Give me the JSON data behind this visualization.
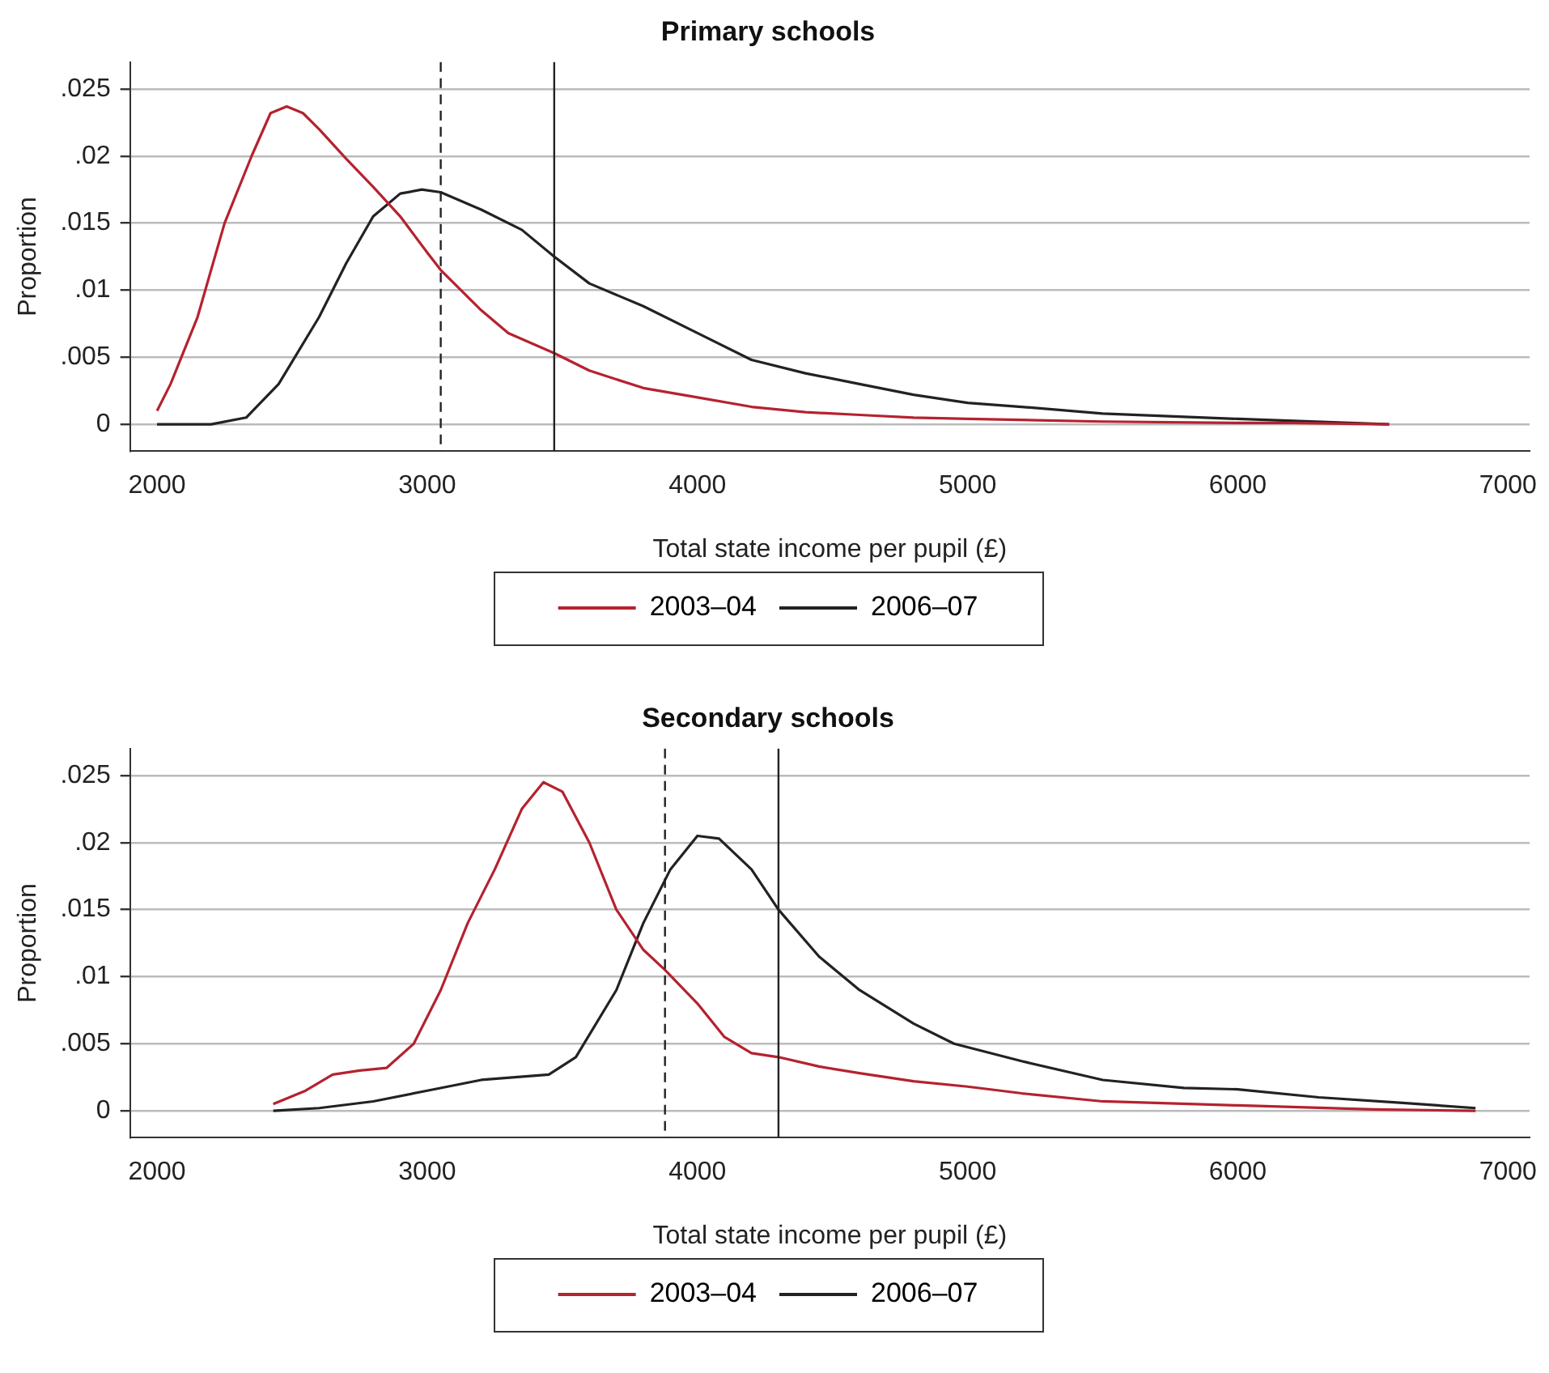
{
  "chart_data": [
    {
      "type": "line",
      "title": "Primary schools",
      "xlabel": "Total state income per pupil (£)",
      "ylabel": "Proportion",
      "xlim": [
        1900,
        7080
      ],
      "xticks": [
        2000,
        3000,
        4000,
        5000,
        6000,
        7000
      ],
      "ylim": [
        -0.002,
        0.027
      ],
      "yticks": [
        {
          "value": 0,
          "label": "0"
        },
        {
          "value": 0.005,
          "label": ".005"
        },
        {
          "value": 0.01,
          "label": ".01"
        },
        {
          "value": 0.015,
          "label": ".015"
        },
        {
          "value": 0.02,
          "label": ".02"
        },
        {
          "value": 0.025,
          "label": ".025"
        }
      ],
      "grid": "y",
      "legend": "bottom",
      "marker": "none",
      "line_style": "solid",
      "ref_lines": [
        {
          "axis": "x",
          "value": 3050,
          "line_style": "dashed",
          "color": "#222222"
        },
        {
          "axis": "x",
          "value": 3470,
          "line_style": "solid",
          "color": "#222222"
        }
      ],
      "series": [
        {
          "name": "2003–04",
          "color": "#b5222f",
          "x": [
            2000,
            2050,
            2150,
            2250,
            2350,
            2420,
            2480,
            2540,
            2600,
            2700,
            2800,
            2900,
            3000,
            3050,
            3200,
            3300,
            3470,
            3600,
            3800,
            4000,
            4200,
            4400,
            4600,
            4800,
            5000,
            5500,
            6000,
            6200,
            6560
          ],
          "values": [
            0.001,
            0.003,
            0.008,
            0.015,
            0.02,
            0.0232,
            0.0237,
            0.0232,
            0.022,
            0.0198,
            0.0177,
            0.0155,
            0.0128,
            0.0115,
            0.0085,
            0.0068,
            0.0053,
            0.004,
            0.0027,
            0.002,
            0.0013,
            0.0009,
            0.0007,
            0.0005,
            0.0004,
            0.0002,
            0.0001,
            0.0001,
            0
          ]
        },
        {
          "name": "2006–07",
          "color": "#222222",
          "x": [
            2000,
            2200,
            2330,
            2450,
            2600,
            2700,
            2800,
            2900,
            2980,
            3050,
            3200,
            3350,
            3470,
            3600,
            3800,
            4000,
            4200,
            4400,
            4600,
            4800,
            5000,
            5200,
            5500,
            6000,
            6560
          ],
          "values": [
            0,
            0,
            0.0005,
            0.003,
            0.008,
            0.012,
            0.0155,
            0.0172,
            0.0175,
            0.0173,
            0.016,
            0.0145,
            0.0125,
            0.0105,
            0.0088,
            0.0068,
            0.0048,
            0.0038,
            0.003,
            0.0022,
            0.0016,
            0.0013,
            0.0008,
            0.0004,
            0
          ]
        }
      ]
    },
    {
      "type": "line",
      "title": "Secondary schools",
      "xlabel": "Total state income per pupil (£)",
      "ylabel": "Proportion",
      "xlim": [
        1900,
        7080
      ],
      "xticks": [
        2000,
        3000,
        4000,
        5000,
        6000,
        7000
      ],
      "ylim": [
        -0.002,
        0.027
      ],
      "yticks": [
        {
          "value": 0,
          "label": "0"
        },
        {
          "value": 0.005,
          "label": ".005"
        },
        {
          "value": 0.01,
          "label": ".01"
        },
        {
          "value": 0.015,
          "label": ".015"
        },
        {
          "value": 0.02,
          "label": ".02"
        },
        {
          "value": 0.025,
          "label": ".025"
        }
      ],
      "grid": "y",
      "legend": "bottom",
      "marker": "none",
      "line_style": "solid",
      "ref_lines": [
        {
          "axis": "x",
          "value": 3880,
          "line_style": "dashed",
          "color": "#222222"
        },
        {
          "axis": "x",
          "value": 4300,
          "line_style": "solid",
          "color": "#222222"
        }
      ],
      "series": [
        {
          "name": "2003–04",
          "color": "#b5222f",
          "x": [
            2430,
            2550,
            2650,
            2750,
            2850,
            2950,
            3050,
            3150,
            3250,
            3350,
            3430,
            3500,
            3600,
            3700,
            3800,
            3880,
            4000,
            4100,
            4200,
            4300,
            4450,
            4600,
            4800,
            5000,
            5200,
            5500,
            6000,
            6500,
            6880
          ],
          "values": [
            0.0005,
            0.0015,
            0.0027,
            0.003,
            0.0032,
            0.005,
            0.009,
            0.014,
            0.018,
            0.0225,
            0.0245,
            0.0238,
            0.02,
            0.015,
            0.012,
            0.0105,
            0.008,
            0.0055,
            0.0043,
            0.004,
            0.0033,
            0.0028,
            0.0022,
            0.0018,
            0.0013,
            0.0007,
            0.0004,
            0.0001,
            0
          ]
        },
        {
          "name": "2006–07",
          "color": "#222222",
          "x": [
            2430,
            2600,
            2800,
            3000,
            3200,
            3450,
            3550,
            3700,
            3800,
            3900,
            4000,
            4080,
            4200,
            4300,
            4450,
            4600,
            4800,
            4950,
            5200,
            5500,
            5800,
            6000,
            6300,
            6600,
            6880
          ],
          "values": [
            0,
            0.0002,
            0.0007,
            0.0015,
            0.0023,
            0.0027,
            0.004,
            0.009,
            0.014,
            0.018,
            0.0205,
            0.0203,
            0.018,
            0.015,
            0.0115,
            0.009,
            0.0065,
            0.005,
            0.0037,
            0.0023,
            0.0017,
            0.0016,
            0.001,
            0.0006,
            0.0002
          ]
        }
      ]
    }
  ]
}
